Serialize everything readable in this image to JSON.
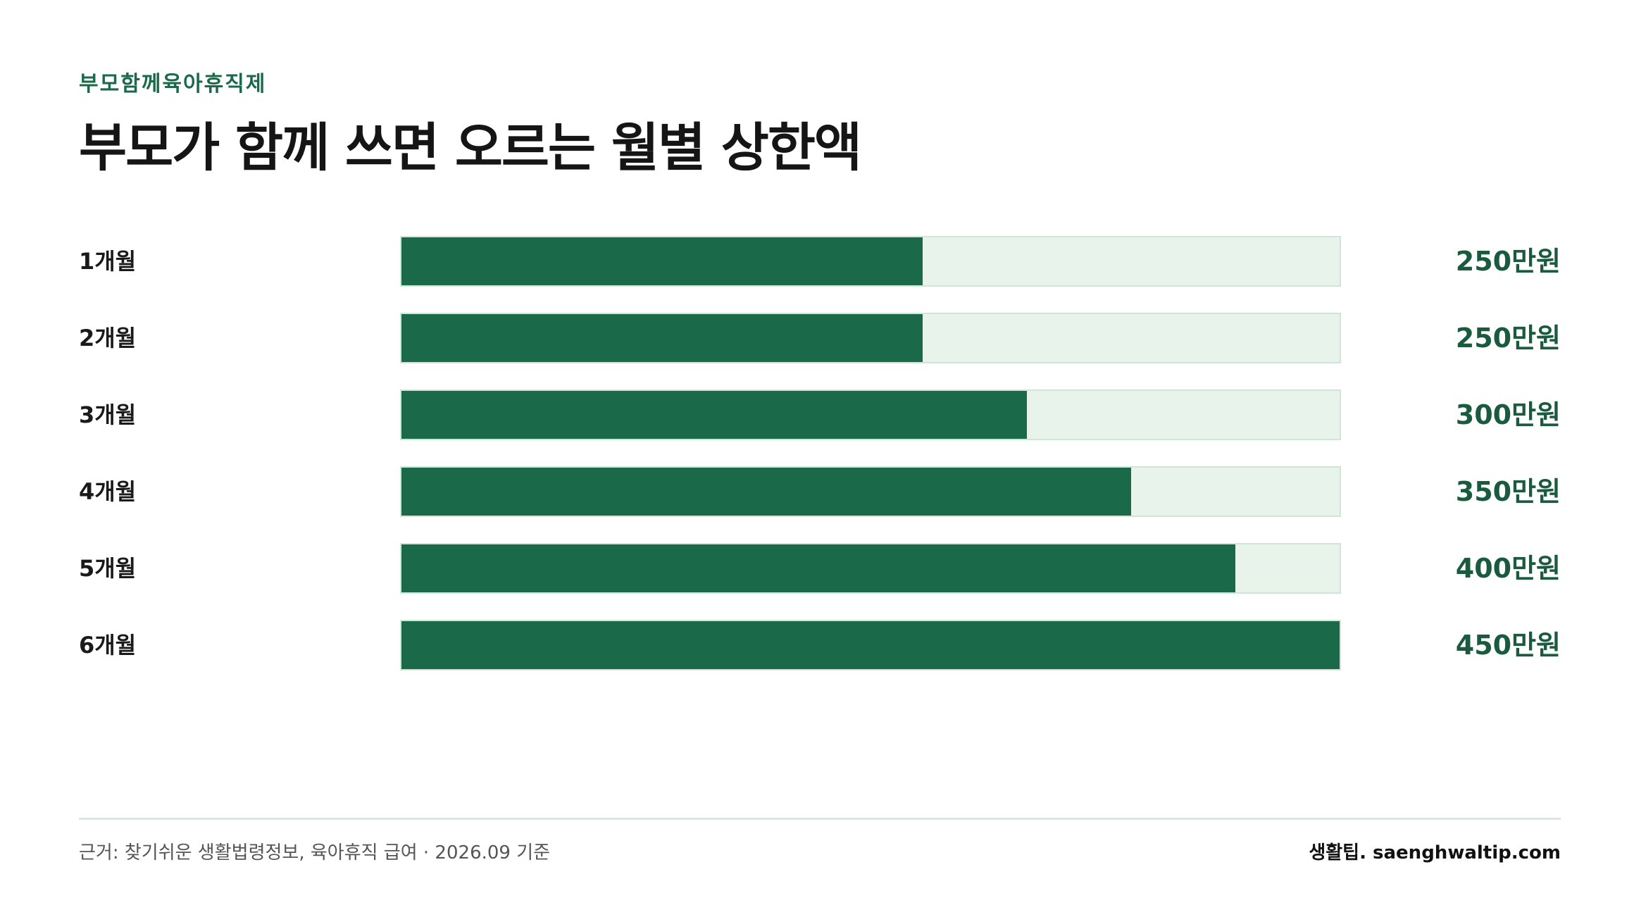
{
  "header": {
    "eyebrow": "부모함께육아휴직제",
    "title": "부모가 함께 쓰면 오르는 월별 상한액"
  },
  "colors": {
    "bar_fill": "#1a6a4a",
    "bar_track": "#e8f3ec",
    "accent_text": "#1a6a4a"
  },
  "chart_data": {
    "type": "bar",
    "orientation": "horizontal",
    "categories": [
      "1개월",
      "2개월",
      "3개월",
      "4개월",
      "5개월",
      "6개월"
    ],
    "values": [
      250,
      250,
      300,
      350,
      400,
      450
    ],
    "value_labels": [
      "250만원",
      "250만원",
      "300만원",
      "350만원",
      "400만원",
      "450만원"
    ],
    "unit": "만원",
    "xlim": [
      0,
      450
    ],
    "grid": false,
    "legend": "none"
  },
  "footer": {
    "source": "근거: 찾기쉬운 생활법령정보, 육아휴직 급여 · 2026.09 기준",
    "brand": "생활팁. saenghwaltip.com"
  }
}
